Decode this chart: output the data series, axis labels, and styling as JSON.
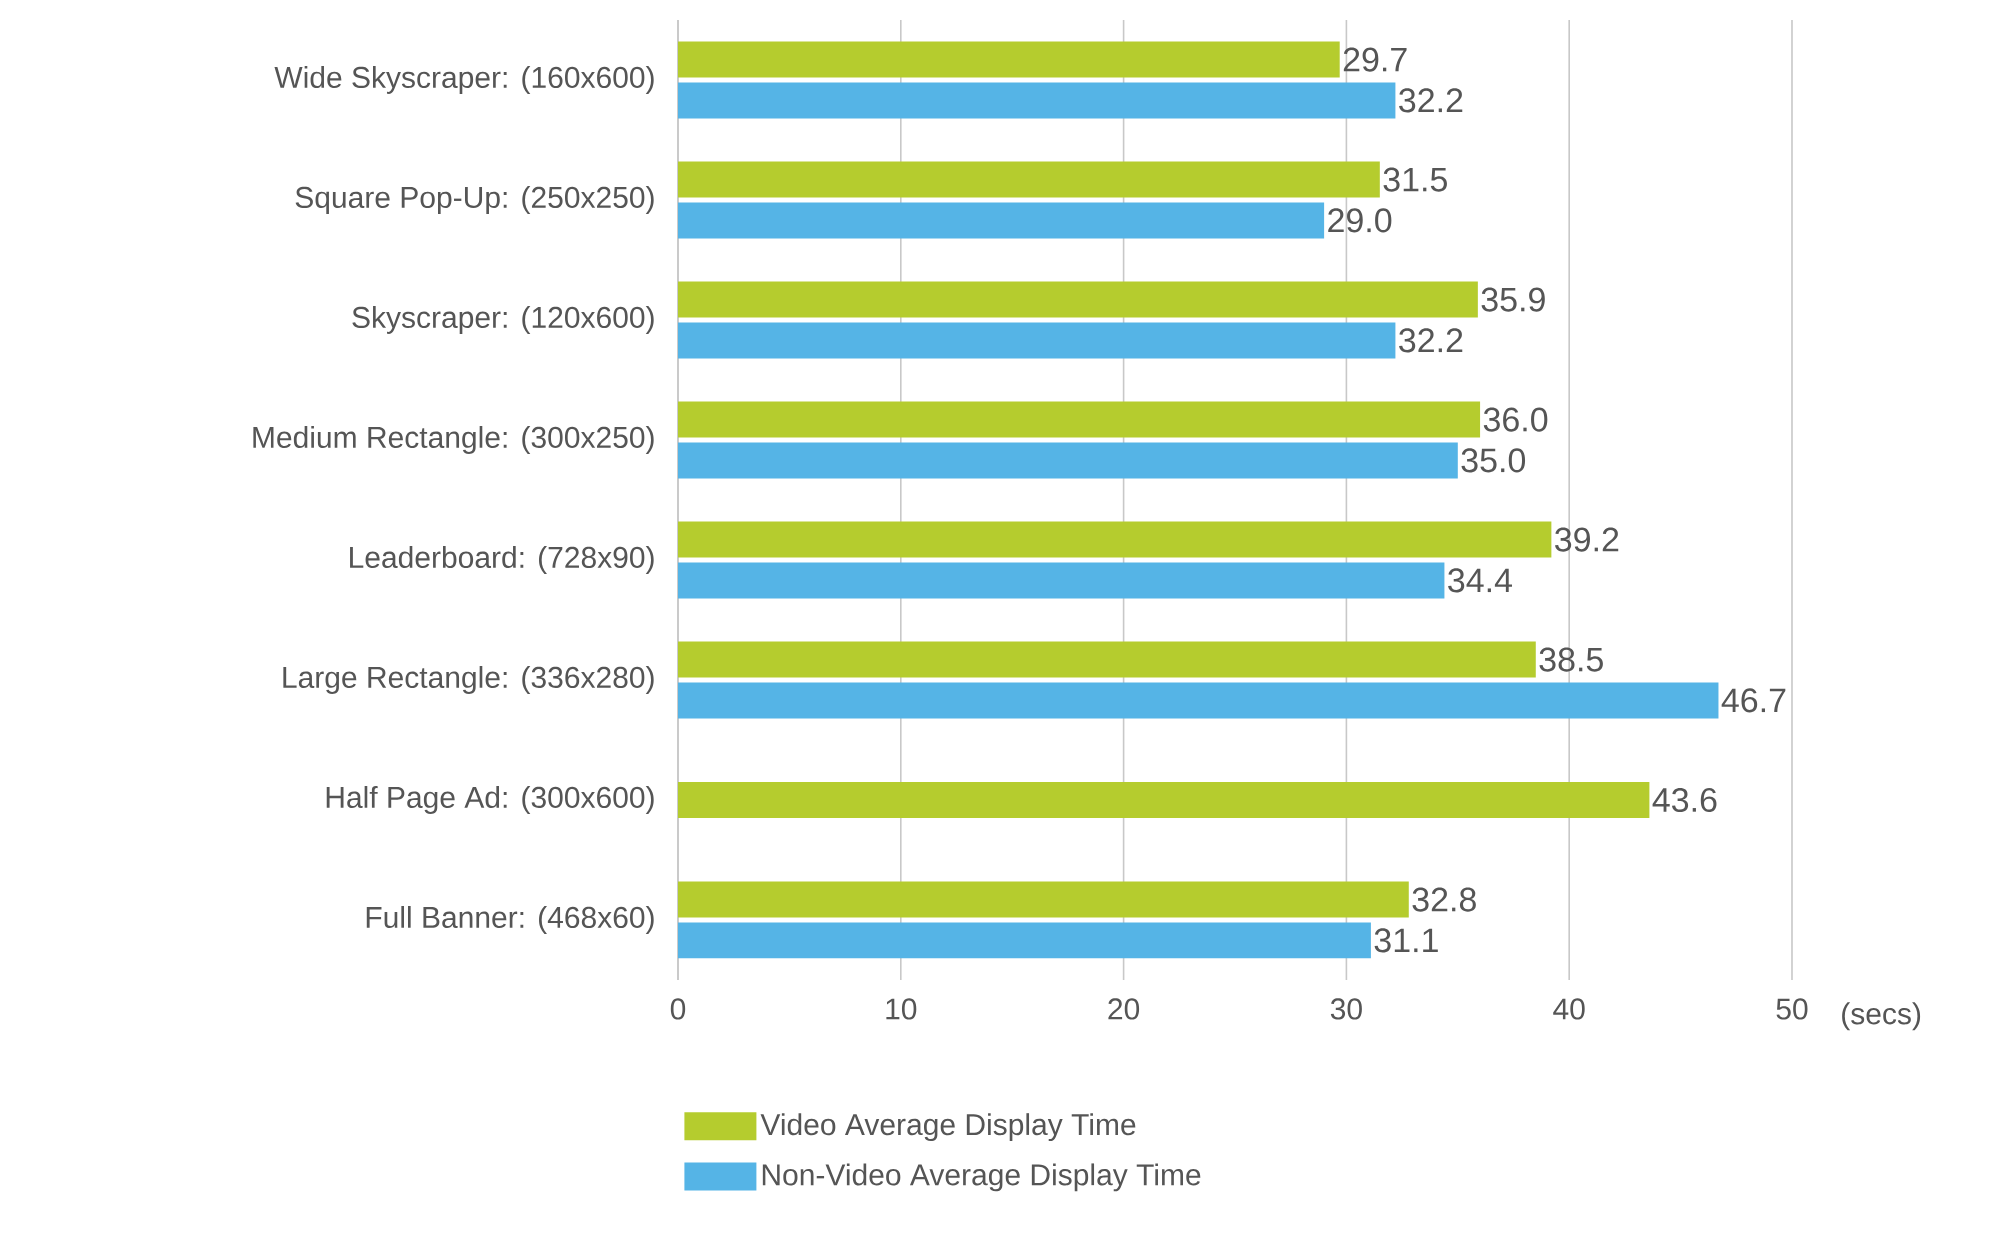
{
  "chart_data": {
    "type": "bar",
    "orientation": "horizontal",
    "xlabel": "(secs)",
    "categories": [
      "Wide Skyscraper: (160x600)",
      "Square Pop-Up: (250x250)",
      "Skyscraper: (120x600)",
      "Medium Rectangle: (300x250)",
      "Leaderboard: (728x90)",
      "Large Rectangle: (336x280)",
      "Half Page Ad: (300x600)",
      "Full Banner: (468x60)"
    ],
    "series": [
      {
        "name": "Video Average Display Time",
        "color": "#b5cc2e",
        "values": [
          29.7,
          31.5,
          35.9,
          36.0,
          39.2,
          38.5,
          43.6,
          32.8
        ],
        "value_labels": [
          "29.7",
          "31.5",
          "35.9",
          "36.0",
          "39.2",
          "38.5",
          "43.6",
          "32.8"
        ]
      },
      {
        "name": "Non-Video Average Display Time",
        "color": "#55b4e6",
        "values": [
          32.2,
          29.0,
          32.2,
          35.0,
          34.4,
          46.7,
          null,
          31.1
        ],
        "value_labels": [
          "32.2",
          "29.0",
          "32.2",
          "35.0",
          "34.4",
          "46.7",
          null,
          "31.1"
        ]
      }
    ],
    "xlim": [
      0,
      50
    ],
    "xticks": [
      0,
      10,
      20,
      30,
      40,
      50
    ],
    "grid": "x",
    "legend": "bottom"
  }
}
